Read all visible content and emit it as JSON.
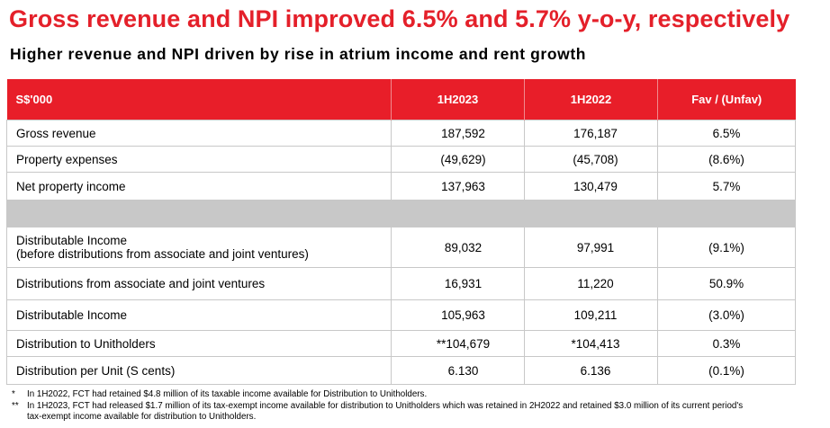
{
  "title": "Gross revenue and NPI improved 6.5% and 5.7% y-o-y, respectively",
  "subtitle": "Higher revenue and NPI driven by rise in atrium income and rent growth",
  "table": {
    "headers": [
      "S$'000",
      "1H2023",
      "1H2022",
      "Fav / (Unfav)"
    ],
    "rows": [
      {
        "label": "Gross revenue",
        "h2023": "187,592",
        "h2022": "176,187",
        "fav": "6.5%"
      },
      {
        "label": "Property expenses",
        "h2023": "(49,629)",
        "h2022": "(45,708)",
        "fav": "(8.6%)"
      },
      {
        "label": "Net property income",
        "h2023": "137,963",
        "h2022": "130,479",
        "fav": "5.7%"
      },
      {
        "label": "Distributable Income",
        "label2": "(before distributions from associate and joint ventures)",
        "h2023": "89,032",
        "h2022": "97,991",
        "fav": "(9.1%)"
      },
      {
        "label": "Distributions from associate and joint ventures",
        "h2023": "16,931",
        "h2022": "11,220",
        "fav": "50.9%"
      },
      {
        "label": "Distributable Income",
        "h2023": "105,963",
        "h2022": "109,211",
        "fav": "(3.0%)"
      },
      {
        "label": "Distribution to Unitholders",
        "h2023": "**104,679",
        "h2022": "*104,413",
        "fav": "0.3%"
      },
      {
        "label": "Distribution per Unit (S cents)",
        "h2023": "6.130",
        "h2022": "6.136",
        "fav": "(0.1%)"
      }
    ]
  },
  "footnotes": [
    {
      "marker": "*",
      "text": "In 1H2022, FCT had retained $4.8 million of its taxable income available for Distribution to Unitholders."
    },
    {
      "marker": "**",
      "text": "In 1H2023, FCT had released $1.7 million of its tax-exempt income available for distribution to Unitholders which was retained in 2H2022 and retained $3.0 million of its current period's",
      "text2": "tax-exempt income available for distribution to Unitholders."
    }
  ]
}
